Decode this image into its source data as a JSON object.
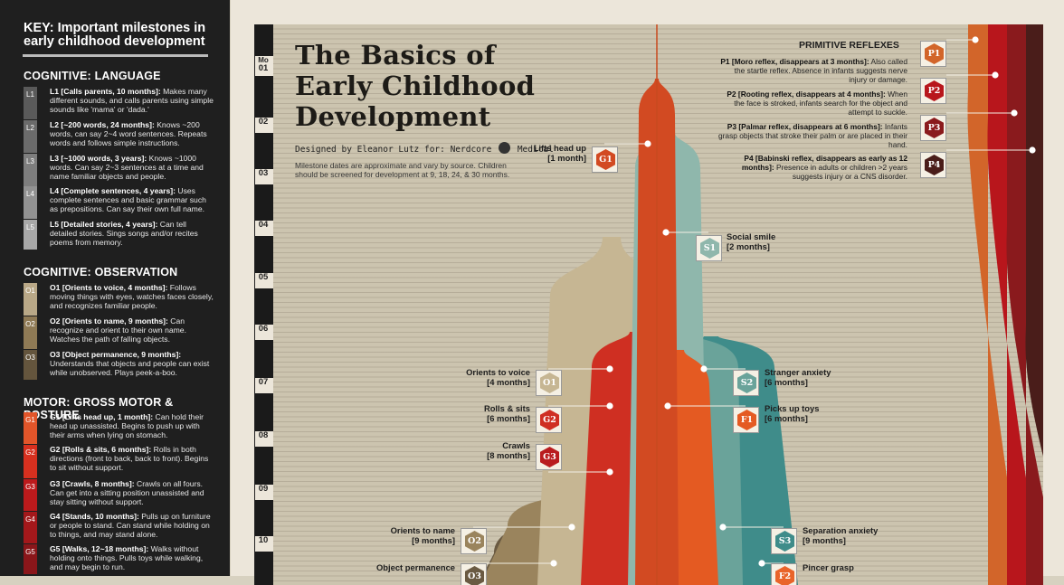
{
  "key": {
    "title": "KEY: Important milestones in early childhood development",
    "sections": [
      {
        "heading": "COGNITIVE: LANGUAGE",
        "items": [
          {
            "code": "L1",
            "color": "#5a5a5a",
            "bold": "L1 [Calls parents, 10 months]:",
            "text": " Makes many different sounds, and calls parents using simple sounds like 'mama' or 'dada.'"
          },
          {
            "code": "L2",
            "color": "#6b6b6b",
            "bold": "L2 [~200 words, 24 months]:",
            "text": " Knows ~200 words, can say 2~4 word sentences. Repeats words and follows simple instructions."
          },
          {
            "code": "L3",
            "color": "#7e7e7e",
            "bold": "L3 [~1000 words, 3 years]:",
            "text": " Knows ~1000 words. Can say 2~3 sentences at a time and name familiar objects and people."
          },
          {
            "code": "L4",
            "color": "#929292",
            "bold": "L4 [Complete sentences, 4 years]:",
            "text": " Uses complete sentences and basic grammar such as prepositions. Can say their own full name."
          },
          {
            "code": "L5",
            "color": "#a8a8a8",
            "bold": "L5 [Detailed stories, 4 years]:",
            "text": " Can tell detailed stories. Sings songs and/or recites poems from memory."
          }
        ]
      },
      {
        "heading": "COGNITIVE: OBSERVATION",
        "items": [
          {
            "code": "O1",
            "color": "#b9a887",
            "bold": "O1 [Orients to voice, 4 months]:",
            "text": " Follows moving things with eyes, watches faces closely, and recognizes familiar people."
          },
          {
            "code": "O2",
            "color": "#8f7a55",
            "bold": "O2 [Orients to name, 9 months]:",
            "text": " Can recognize and orient to their own name. Watches the path of falling objects."
          },
          {
            "code": "O3",
            "color": "#64553d",
            "bold": "O3 [Object permanence, 9 months]:",
            "text": " Understands that objects and people can exist while unobserved. Plays peek-a-boo."
          }
        ]
      },
      {
        "heading": "MOTOR: GROSS MOTOR & POSTURE",
        "items": [
          {
            "code": "G1",
            "color": "#e2552a",
            "bold": "G1 [Lifts head up, 1 month]:",
            "text": " Can hold their head up unassisted. Begins to push up with their arms when lying on stomach."
          },
          {
            "code": "G2",
            "color": "#d7301f",
            "bold": "G2 [Rolls & sits, 6 months]:",
            "text": " Rolls in both directions (front to back, back to front). Begins to sit without support."
          },
          {
            "code": "G3",
            "color": "#bb1a1c",
            "bold": "G3 [Crawls, 8 months]:",
            "text": " Crawls on all fours. Can get into a sitting position unassisted and stay sitting without support."
          },
          {
            "code": "G4",
            "color": "#a3181b",
            "bold": "G4 [Stands, 10 months]:",
            "text": " Pulls up on furniture or people to stand. Can stand while holding on to things, and may stand alone."
          },
          {
            "code": "G5",
            "color": "#8a161a",
            "bold": "G5 [Walks, 12~18 months]:",
            "text": " Walks without holding onto things. Pulls toys while walking, and may begin to run."
          }
        ]
      }
    ]
  },
  "poster": {
    "title_lines": [
      "The Basics of",
      "Early Childhood",
      "Development"
    ],
    "byline": "Designed by Eleanor Lutz for: Nerdcore",
    "byline_sponsor": "Medical",
    "note": "Milestone dates are approximate and vary by source. Children should be screened for development at 9, 18, 24, & 30 months.",
    "month_label": "Mo",
    "months": [
      "01",
      "02",
      "03",
      "04",
      "05",
      "06",
      "07",
      "08",
      "09",
      "10"
    ],
    "milestones": [
      {
        "code": "G1",
        "color": "#d24a22",
        "name": "Lifts head up",
        "age": "[1 month]",
        "side": "left"
      },
      {
        "code": "S1",
        "color": "#8fb7ac",
        "name": "Social smile",
        "age": "[2 months]",
        "side": "right"
      },
      {
        "code": "O1",
        "color": "#c6b693",
        "name": "Orients to voice",
        "age": "[4 months]",
        "side": "left"
      },
      {
        "code": "S2",
        "color": "#6aa39a",
        "name": "Stranger anxiety",
        "age": "[6 months]",
        "side": "right"
      },
      {
        "code": "G2",
        "color": "#cf2f22",
        "name": "Rolls & sits",
        "age": "[6 months]",
        "side": "left"
      },
      {
        "code": "F1",
        "color": "#e45a22",
        "name": "Picks up toys",
        "age": "[6 months]",
        "side": "right"
      },
      {
        "code": "G3",
        "color": "#b91c1f",
        "name": "Crawls",
        "age": "[8 months]",
        "side": "left"
      },
      {
        "code": "O2",
        "color": "#9a845d",
        "name": "Orients to name",
        "age": "[9 months]",
        "side": "left"
      },
      {
        "code": "S3",
        "color": "#3f8c8a",
        "name": "Separation anxiety",
        "age": "[9 months]",
        "side": "right"
      },
      {
        "code": "O3",
        "color": "#6a5a42",
        "name": "Object permanence",
        "age": "",
        "side": "left"
      },
      {
        "code": "F2",
        "color": "#e9642a",
        "name": "Pincer grasp",
        "age": "",
        "side": "right"
      }
    ],
    "reflexes": {
      "title": "PRIMITIVE REFLEXES",
      "items": [
        {
          "code": "P1",
          "color": "#d2652a",
          "bold": "P1 [Moro reflex, disappears at 3 months]:",
          "text": " Also called the startle reflex. Absence in infants suggests nerve injury or damage."
        },
        {
          "code": "P2",
          "color": "#b8161c",
          "bold": "P2 [Rooting reflex, disappears at 4 months]:",
          "text": " When the face is stroked, infants search for the object and attempt to suckle."
        },
        {
          "code": "P3",
          "color": "#8a1a1d",
          "bold": "P3 [Palmar reflex, disappears at 6 months]:",
          "text": " Infants grasp objects that stroke their palm or are placed in their hand."
        },
        {
          "code": "P4",
          "color": "#4a1d1a",
          "bold": "P4 [Babinski reflex, disappears as early as 12 months]:",
          "text": " Presence in adults or children >2 years suggests injury or a CNS disorder."
        }
      ]
    }
  }
}
